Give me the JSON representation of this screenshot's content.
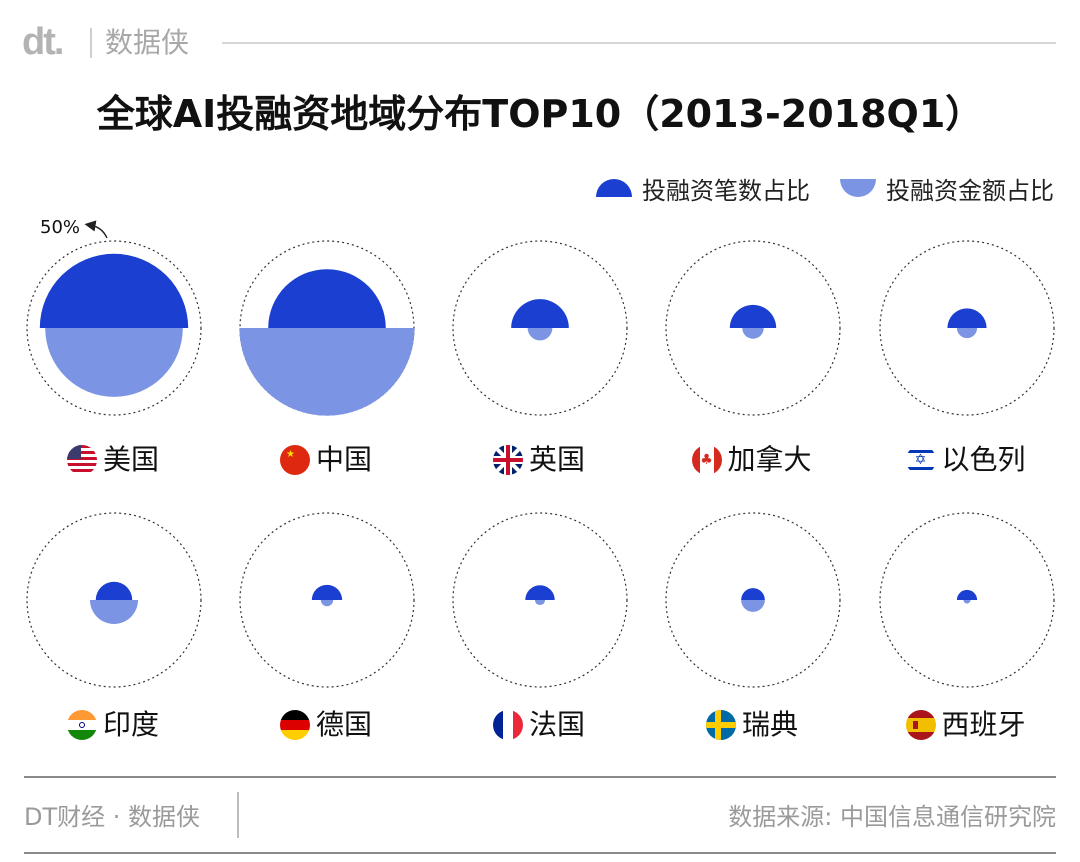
{
  "header": {
    "logo": "dt.",
    "brand": "数据侠"
  },
  "title": "全球AI投融资地域分布TOP10（2013-2018Q1）",
  "legend": {
    "count_label": "投融资笔数占比",
    "amount_label": "投融资金额占比"
  },
  "colors": {
    "count": "#1a3fd1",
    "amount": "#7b95e4",
    "ring": "#333333"
  },
  "chart_data": {
    "type": "semicircle-proportional",
    "reference_annotation": "50%",
    "reference_value": 50,
    "series": [
      {
        "name": "投融资笔数占比",
        "position": "upper"
      },
      {
        "name": "投融资金额占比",
        "position": "lower"
      }
    ],
    "countries": [
      {
        "name": "美国",
        "flag": "us-flag-icon",
        "count_pct": 43,
        "amount_pct": 37
      },
      {
        "name": "中国",
        "flag": "cn-flag-icon",
        "count_pct": 27,
        "amount_pct": 60
      },
      {
        "name": "英国",
        "flag": "gb-flag-icon",
        "count_pct": 6.5,
        "amount_pct": 1.2
      },
      {
        "name": "加拿大",
        "flag": "ca-flag-icon",
        "count_pct": 4.2,
        "amount_pct": 0.9
      },
      {
        "name": "以色列",
        "flag": "il-flag-icon",
        "count_pct": 3.0,
        "amount_pct": 0.8
      },
      {
        "name": "印度",
        "flag": "in-flag-icon",
        "count_pct": 2.6,
        "amount_pct": 4.5
      },
      {
        "name": "德国",
        "flag": "de-flag-icon",
        "count_pct": 1.8,
        "amount_pct": 0.3
      },
      {
        "name": "法国",
        "flag": "fr-flag-icon",
        "count_pct": 1.7,
        "amount_pct": 0.2
      },
      {
        "name": "瑞典",
        "flag": "se-flag-icon",
        "count_pct": 1.1,
        "amount_pct": 1.1
      },
      {
        "name": "西班牙",
        "flag": "es-flag-icon",
        "count_pct": 0.8,
        "amount_pct": 0.1
      }
    ]
  },
  "footer": {
    "left": "DT财经 · 数据侠",
    "right": "数据来源: 中国信息通信研究院"
  }
}
